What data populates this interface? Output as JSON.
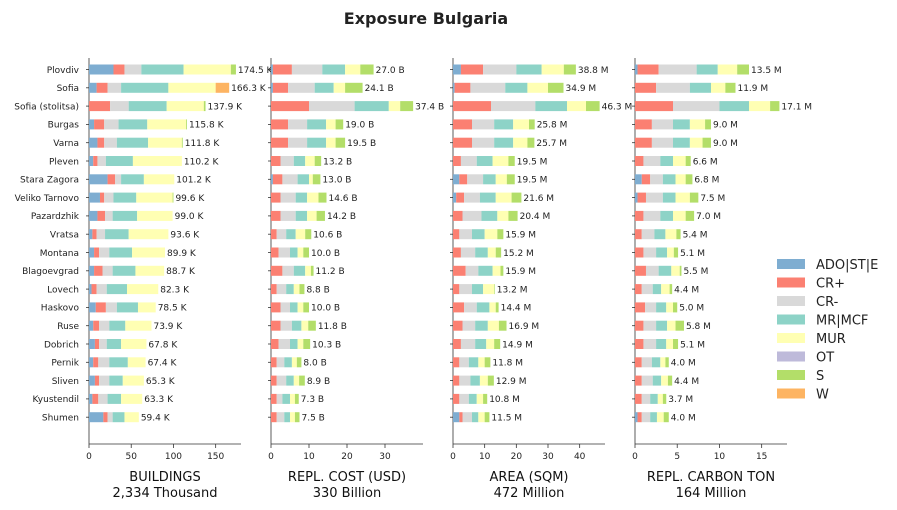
{
  "chart_data": {
    "type": "bar",
    "orientation": "horizontal",
    "stacked": true,
    "title": "Exposure Bulgaria",
    "categories": [
      "Plovdiv",
      "Sofia",
      "Sofia (stolitsa)",
      "Burgas",
      "Varna",
      "Pleven",
      "Stara Zagora",
      "Veliko Tarnovo",
      "Pazardzhik",
      "Vratsa",
      "Montana",
      "Blagoevgrad",
      "Lovech",
      "Haskovo",
      "Ruse",
      "Dobrich",
      "Pernik",
      "Sliven",
      "Kyustendil",
      "Shumen"
    ],
    "legend": {
      "position": "right",
      "entries": [
        {
          "name": "ADO|ST|E",
          "color": "#7eadd1"
        },
        {
          "name": "CR+",
          "color": "#fb8072"
        },
        {
          "name": "CR-",
          "color": "#d9d9d9"
        },
        {
          "name": "MR|MCF",
          "color": "#8dd3c7"
        },
        {
          "name": "MUR",
          "color": "#ffffb3"
        },
        {
          "name": "OT",
          "color": "#bebada"
        },
        {
          "name": "S",
          "color": "#b3de69"
        },
        {
          "name": "W",
          "color": "#fdb462"
        }
      ]
    },
    "panels": [
      {
        "xlabel": "BUILDINGS",
        "subtitle": "2,334 Thousand",
        "xlim": [
          0,
          180
        ],
        "xticks": [
          0,
          50,
          100,
          150
        ],
        "labels": [
          "174.5 K",
          "166.3 K",
          "137.9 K",
          "115.8 K",
          "111.8 K",
          "110.2 K",
          "101.2 K",
          "99.6 K",
          "99.0 K",
          "93.6 K",
          "89.9 K",
          "88.7 K",
          "82.3 K",
          "78.5 K",
          "73.9 K",
          "67.8 K",
          "67.4 K",
          "65.3 K",
          "63.3 K",
          "59.4 K"
        ],
        "values": [
          [
            29,
            13,
            20,
            50,
            56,
            0,
            6,
            0
          ],
          [
            9,
            13,
            16,
            56,
            56,
            0,
            0,
            16
          ],
          [
            0,
            25,
            22,
            45,
            44,
            0,
            2,
            0
          ],
          [
            6,
            12,
            17,
            34,
            46,
            0,
            1,
            0
          ],
          [
            10,
            8,
            15,
            37,
            40,
            0,
            1,
            0
          ],
          [
            5,
            5,
            10,
            32,
            58,
            0,
            0,
            0
          ],
          [
            22,
            9,
            7,
            27,
            36,
            0,
            0,
            0
          ],
          [
            13,
            5,
            11,
            27,
            43,
            0,
            1,
            0
          ],
          [
            10,
            9,
            9,
            29,
            42,
            0,
            0,
            0
          ],
          [
            4,
            5,
            10,
            28,
            47,
            0,
            0,
            0
          ],
          [
            6,
            6,
            12,
            27,
            39,
            0,
            0,
            0
          ],
          [
            6,
            10,
            12,
            27,
            34,
            0,
            0,
            0
          ],
          [
            3,
            6,
            12,
            24,
            37,
            0,
            0,
            0
          ],
          [
            8,
            12,
            13,
            25,
            21,
            0,
            0,
            0
          ],
          [
            5,
            7,
            12,
            19,
            31,
            0,
            0,
            0
          ],
          [
            7,
            5,
            9,
            17,
            30,
            0,
            0,
            0
          ],
          [
            5,
            6,
            13,
            22,
            21,
            0,
            0,
            0
          ],
          [
            7,
            5,
            12,
            16,
            25,
            0,
            0,
            0
          ],
          [
            4,
            7,
            11,
            16,
            25,
            0,
            0,
            0
          ],
          [
            17,
            5,
            6,
            14,
            17,
            0,
            0,
            0
          ]
        ]
      },
      {
        "xlabel": "REPL. COST (USD)",
        "subtitle": "330 Billion",
        "xlim": [
          0,
          40
        ],
        "xticks": [
          0,
          10,
          20,
          30
        ],
        "labels": [
          "27.0 B",
          "24.1 B",
          "37.4 B",
          "19.0 B",
          "19.5 B",
          "13.2 B",
          "13.0 B",
          "14.6 B",
          "14.2 B",
          "10.6 B",
          "10.0 B",
          "11.2 B",
          "8.8 B",
          "10.0 B",
          "11.8 B",
          "10.3 B",
          "8.0 B",
          "8.9 B",
          "7.3 B",
          "7.5 B"
        ],
        "values": [
          [
            0.5,
            5,
            8,
            6,
            4,
            0,
            3.5,
            0
          ],
          [
            0.5,
            4,
            7,
            5,
            3,
            0,
            4.6,
            0
          ],
          [
            0,
            10,
            12,
            9,
            3,
            0,
            3.4,
            0
          ],
          [
            0,
            4.5,
            5,
            5,
            2.5,
            0,
            2,
            0
          ],
          [
            0,
            4.5,
            5,
            5,
            2.5,
            0,
            2.5,
            0
          ],
          [
            0,
            2.5,
            3.5,
            3,
            2.5,
            0,
            1.7,
            0
          ],
          [
            0.5,
            2.5,
            4,
            3,
            1,
            0,
            2,
            0
          ],
          [
            0,
            2.5,
            4,
            3,
            3,
            0,
            2.1,
            0
          ],
          [
            0,
            2.5,
            4,
            3,
            2.5,
            0,
            2.2,
            0
          ],
          [
            0,
            1.5,
            2.5,
            2.5,
            2.5,
            0,
            1.6,
            0
          ],
          [
            0,
            2,
            3,
            2,
            1.5,
            0,
            1.5,
            0
          ],
          [
            0,
            3,
            3,
            3,
            1.5,
            0,
            0.7,
            0
          ],
          [
            0,
            1.5,
            2.5,
            2,
            1.5,
            0,
            1.3,
            0
          ],
          [
            0,
            2.5,
            2.5,
            2,
            1.5,
            0,
            1.5,
            0
          ],
          [
            0,
            2.5,
            3,
            2.5,
            1.8,
            0,
            2,
            0
          ],
          [
            0,
            2,
            3,
            2,
            1.5,
            0,
            1.8,
            0
          ],
          [
            0,
            1.5,
            2,
            2,
            1.3,
            0,
            1.2,
            0
          ],
          [
            0,
            1.5,
            2.5,
            2,
            1.4,
            0,
            1.5,
            0
          ],
          [
            0,
            1.5,
            1.5,
            2,
            1.3,
            0,
            1,
            0
          ],
          [
            0,
            1.5,
            2,
            1.5,
            1.3,
            0,
            1.2,
            0
          ]
        ]
      },
      {
        "xlabel": "AREA (SQM)",
        "subtitle": "472 Million",
        "xlim": [
          0,
          48
        ],
        "xticks": [
          0,
          10,
          20,
          30,
          40
        ],
        "labels": [
          "38.8 M",
          "34.9 M",
          "46.3 M",
          "25.8 M",
          "25.7 M",
          "19.5 M",
          "19.5 M",
          "21.6 M",
          "20.4 M",
          "15.9 M",
          "15.2 M",
          "15.9 M",
          "13.2 M",
          "14.4 M",
          "16.9 M",
          "14.9 M",
          "11.8 M",
          "12.9 M",
          "10.8 M",
          "11.5 M"
        ],
        "values": [
          [
            2.5,
            7,
            10.5,
            8,
            7,
            0,
            3.8,
            0
          ],
          [
            0.5,
            5,
            11,
            7,
            6.5,
            0,
            4.9,
            0
          ],
          [
            0,
            12,
            14,
            10,
            6,
            0,
            4.3,
            0
          ],
          [
            0,
            6,
            7,
            6,
            5,
            0,
            1.8,
            0
          ],
          [
            0,
            6,
            7,
            6,
            4.5,
            0,
            2.2,
            0
          ],
          [
            0,
            2.5,
            5,
            5,
            5,
            0,
            2,
            0
          ],
          [
            2,
            2.5,
            5,
            4,
            3.5,
            0,
            2.5,
            0
          ],
          [
            1,
            2.5,
            5,
            5,
            5,
            0,
            3.1,
            0
          ],
          [
            0,
            3,
            6,
            5,
            3.5,
            0,
            2.9,
            0
          ],
          [
            0,
            2,
            4,
            4,
            4,
            0,
            1.9,
            0
          ],
          [
            0,
            2.5,
            4.5,
            4,
            2.5,
            0,
            1.7,
            0
          ],
          [
            0,
            4,
            4,
            4.5,
            2.5,
            0,
            0.9,
            0
          ],
          [
            0,
            2,
            4,
            3.5,
            3.5,
            0,
            0.2,
            0
          ],
          [
            0,
            3.5,
            4,
            4,
            2,
            0,
            0.9,
            0
          ],
          [
            0,
            3,
            4,
            4,
            3.5,
            0,
            2.4,
            0
          ],
          [
            0,
            2.5,
            4.5,
            3.5,
            2.5,
            0,
            1.9,
            0
          ],
          [
            0,
            2,
            3,
            3,
            2,
            0,
            1.8,
            0
          ],
          [
            0,
            2,
            3.5,
            3,
            2.5,
            0,
            1.9,
            0
          ],
          [
            0,
            2,
            3,
            2.5,
            2,
            0,
            1.3,
            0
          ],
          [
            2,
            1,
            3,
            2,
            2,
            0,
            1.5,
            0
          ]
        ]
      },
      {
        "xlabel": "REPL. CARBON TON",
        "subtitle": "164 Million",
        "xlim": [
          0,
          18
        ],
        "xticks": [
          0,
          5,
          10,
          15
        ],
        "labels": [
          "13.5 M",
          "11.9 M",
          "17.1 M",
          "9.0 M",
          "9.0 M",
          "6.6 M",
          "6.8 M",
          "7.5 M",
          "7.0 M",
          "5.4 M",
          "5.1 M",
          "5.5 M",
          "4.4 M",
          "5.0 M",
          "5.8 M",
          "5.1 M",
          "4.0 M",
          "4.4 M",
          "3.7 M",
          "4.0 M"
        ],
        "values": [
          [
            0.3,
            2.5,
            4.5,
            2.5,
            2.3,
            0,
            1.4,
            0
          ],
          [
            0,
            2.5,
            4,
            2.5,
            1.7,
            0,
            1.2,
            0
          ],
          [
            0,
            4.5,
            5.5,
            3.5,
            2.5,
            0,
            1.1,
            0
          ],
          [
            0,
            2,
            2.5,
            2,
            1.8,
            0,
            0.7,
            0
          ],
          [
            0,
            2,
            2.5,
            2,
            1.5,
            0,
            1,
            0
          ],
          [
            0,
            1,
            2,
            1.5,
            1.5,
            0,
            0.6,
            0
          ],
          [
            0.8,
            1,
            1.5,
            1.5,
            1.2,
            0,
            0.8,
            0
          ],
          [
            0.3,
            1,
            2,
            1.5,
            1.7,
            0,
            1,
            0
          ],
          [
            0,
            1,
            2,
            1.5,
            1.5,
            0,
            1,
            0
          ],
          [
            0,
            0.8,
            1.5,
            1.3,
            1.3,
            0,
            0.5,
            0
          ],
          [
            0,
            1,
            1.5,
            1.3,
            0.8,
            0,
            0.5,
            0
          ],
          [
            0,
            1.3,
            1.5,
            1.5,
            1,
            0,
            0.2,
            0
          ],
          [
            0,
            0.8,
            1.3,
            1,
            1,
            0,
            0.3,
            0
          ],
          [
            0,
            1.2,
            1.3,
            1.2,
            0.8,
            0,
            0.5,
            0
          ],
          [
            0,
            1,
            1.5,
            1.3,
            1,
            0,
            1,
            0
          ],
          [
            0,
            1,
            1.5,
            1.2,
            0.8,
            0,
            0.6,
            0
          ],
          [
            0,
            0.8,
            1.2,
            1,
            0.6,
            0,
            0.4,
            0
          ],
          [
            0,
            0.8,
            1.3,
            1,
            0.8,
            0,
            0.5,
            0
          ],
          [
            0,
            0.8,
            1,
            0.9,
            0.6,
            0,
            0.4,
            0
          ],
          [
            0.3,
            0.5,
            1,
            0.8,
            0.8,
            0,
            0.6,
            0
          ]
        ]
      }
    ]
  }
}
